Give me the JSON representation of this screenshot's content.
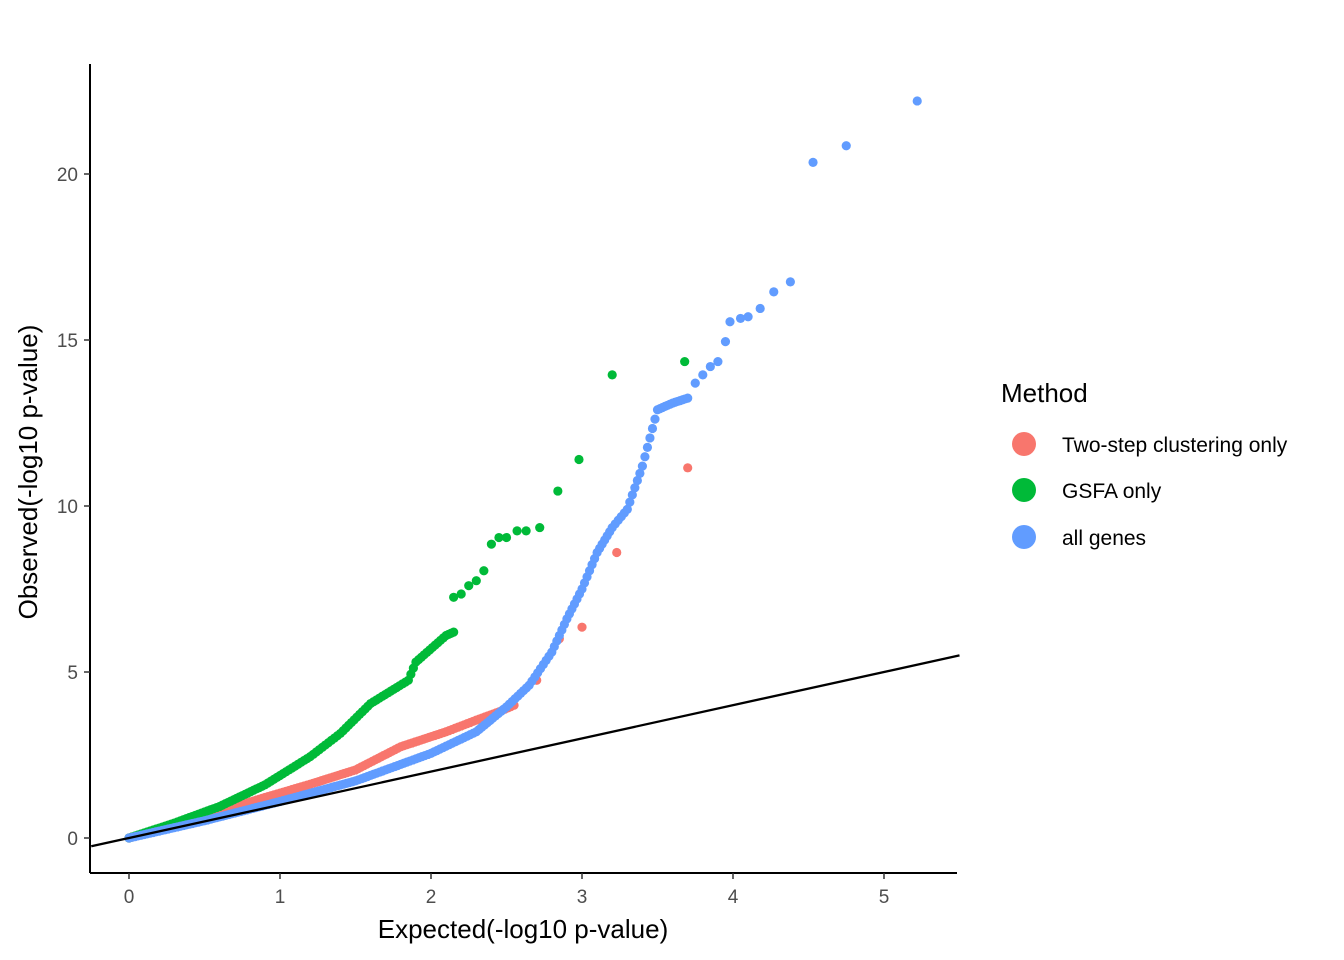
{
  "chart_data": {
    "type": "scatter",
    "title": "",
    "xlabel": "Expected(-log10 p-value)",
    "ylabel": "Observed(-log10 p-value)",
    "xlim": [
      -0.25,
      5.5
    ],
    "ylim": [
      -1.1,
      23.3
    ],
    "x_ticks": [
      0,
      1,
      2,
      3,
      4,
      5
    ],
    "y_ticks": [
      0,
      5,
      10,
      15,
      20
    ],
    "x_tick_labels": [
      "0",
      "1",
      "2",
      "3",
      "4",
      "5"
    ],
    "y_tick_labels": [
      "0",
      "5",
      "10",
      "15",
      "20"
    ],
    "reference_line": {
      "slope": 1,
      "intercept": 0,
      "color": "#000000"
    },
    "legend": {
      "title": "Method",
      "position": "right",
      "entries": [
        {
          "label": "Two-step clustering only",
          "color": "#F8766D"
        },
        {
          "label": "GSFA only",
          "color": "#00BA38"
        },
        {
          "label": "all genes",
          "color": "#619CFF"
        }
      ]
    },
    "series": [
      {
        "name": "Two-step clustering only",
        "color": "#F8766D",
        "curve": [
          [
            0,
            0
          ],
          [
            0.3,
            0.38
          ],
          [
            0.6,
            0.8
          ],
          [
            0.9,
            1.22
          ],
          [
            1.2,
            1.62
          ],
          [
            1.5,
            2.05
          ],
          [
            1.8,
            2.75
          ],
          [
            2.1,
            3.2
          ],
          [
            2.3,
            3.55
          ],
          [
            2.45,
            3.8
          ],
          [
            2.55,
            4.0
          ]
        ],
        "points": [
          [
            2.7,
            4.75
          ],
          [
            2.85,
            6.0
          ],
          [
            3.0,
            6.35
          ],
          [
            3.23,
            8.6
          ],
          [
            3.7,
            11.15
          ]
        ]
      },
      {
        "name": "GSFA only",
        "color": "#00BA38",
        "curve": [
          [
            0,
            0
          ],
          [
            0.3,
            0.45
          ],
          [
            0.6,
            0.95
          ],
          [
            0.9,
            1.6
          ],
          [
            1.2,
            2.45
          ],
          [
            1.4,
            3.15
          ],
          [
            1.6,
            4.05
          ],
          [
            1.85,
            4.75
          ],
          [
            1.9,
            5.3
          ],
          [
            2.1,
            6.1
          ],
          [
            2.15,
            6.2
          ]
        ],
        "points": [
          [
            2.15,
            7.25
          ],
          [
            2.2,
            7.35
          ],
          [
            2.25,
            7.6
          ],
          [
            2.3,
            7.75
          ],
          [
            2.35,
            8.05
          ],
          [
            2.4,
            8.85
          ],
          [
            2.45,
            9.05
          ],
          [
            2.5,
            9.05
          ],
          [
            2.57,
            9.25
          ],
          [
            2.63,
            9.25
          ],
          [
            2.72,
            9.35
          ],
          [
            2.84,
            10.45
          ],
          [
            2.98,
            11.4
          ],
          [
            3.2,
            13.95
          ],
          [
            3.68,
            14.35
          ]
        ]
      },
      {
        "name": "all genes",
        "color": "#619CFF",
        "curve": [
          [
            0,
            0
          ],
          [
            0.5,
            0.52
          ],
          [
            1.0,
            1.1
          ],
          [
            1.5,
            1.72
          ],
          [
            2.0,
            2.55
          ],
          [
            2.3,
            3.2
          ],
          [
            2.5,
            3.95
          ],
          [
            2.65,
            4.6
          ],
          [
            2.8,
            5.6
          ],
          [
            2.9,
            6.6
          ],
          [
            3.0,
            7.5
          ],
          [
            3.1,
            8.6
          ],
          [
            3.2,
            9.35
          ],
          [
            3.3,
            9.9
          ],
          [
            3.4,
            11.2
          ],
          [
            3.5,
            12.9
          ],
          [
            3.6,
            13.1
          ],
          [
            3.7,
            13.25
          ]
        ],
        "points": [
          [
            3.75,
            13.7
          ],
          [
            3.8,
            13.95
          ],
          [
            3.85,
            14.2
          ],
          [
            3.9,
            14.35
          ],
          [
            3.95,
            14.95
          ],
          [
            3.98,
            15.55
          ],
          [
            4.05,
            15.65
          ],
          [
            4.1,
            15.7
          ],
          [
            4.18,
            15.95
          ],
          [
            4.27,
            16.45
          ],
          [
            4.38,
            16.75
          ],
          [
            4.53,
            20.35
          ],
          [
            4.75,
            20.85
          ],
          [
            5.22,
            22.2
          ]
        ]
      }
    ]
  }
}
